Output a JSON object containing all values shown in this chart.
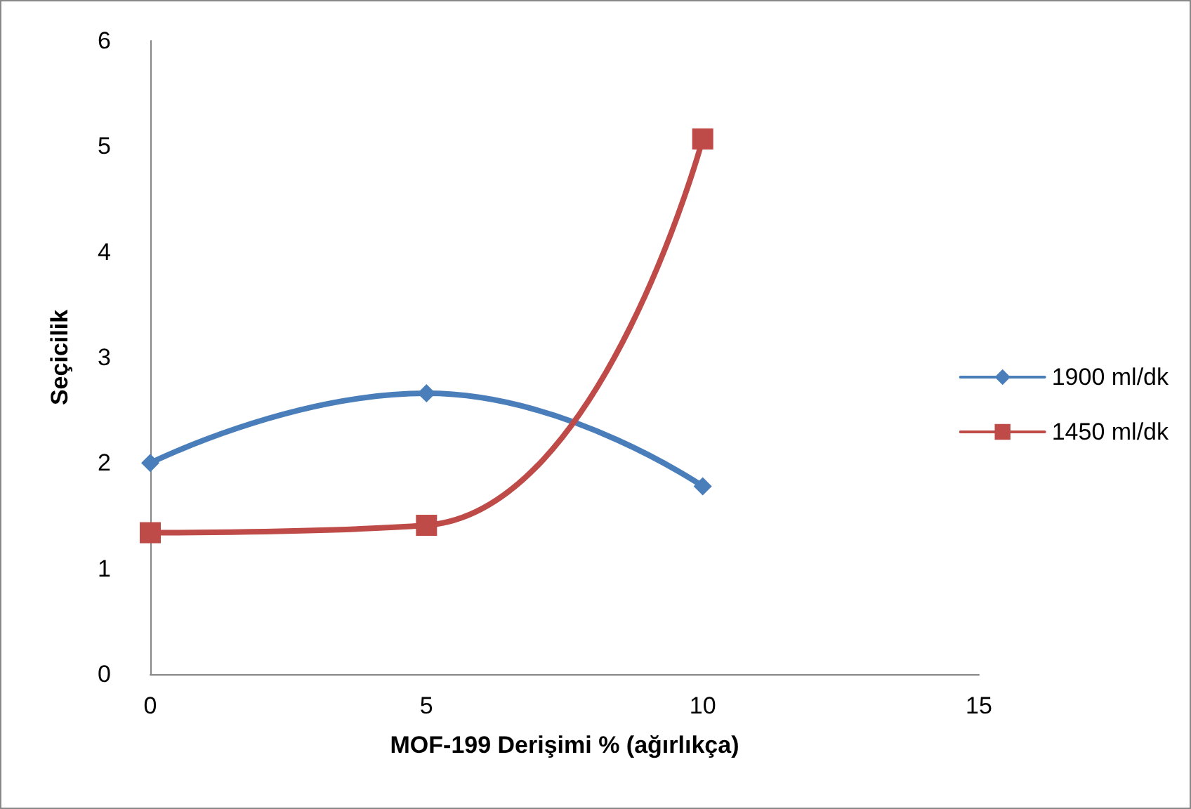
{
  "chart_data": {
    "type": "line",
    "xlabel": "MOF-199 Derişimi % (ağırlıkça)",
    "ylabel": "Seçicilik",
    "x": [
      0,
      5,
      10
    ],
    "series": [
      {
        "name": "1900 ml/dk",
        "color": "#4a7ebb",
        "values": [
          2.0,
          2.66,
          1.78
        ],
        "marker": "diamond"
      },
      {
        "name": "1450 ml/dk",
        "color": "#be4b48",
        "values": [
          1.34,
          1.41,
          5.07
        ],
        "marker": "square"
      }
    ],
    "xlim": [
      0,
      15
    ],
    "xticks": [
      0,
      5,
      10,
      15
    ],
    "ylim": [
      0,
      6
    ],
    "yticks": [
      0,
      1,
      2,
      3,
      4,
      5,
      6
    ],
    "grid": false,
    "legend": "right",
    "line_style": "solid"
  }
}
